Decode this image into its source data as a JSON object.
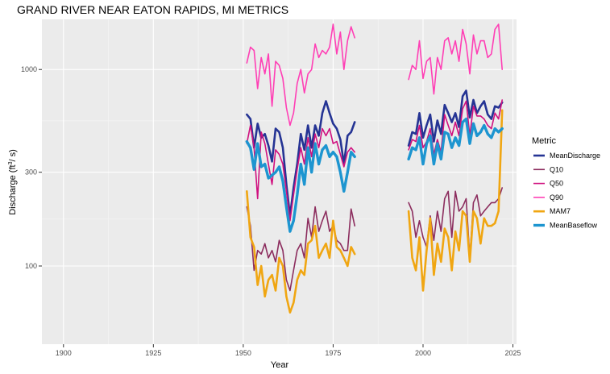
{
  "chart_data": {
    "type": "line",
    "title": "GRAND RIVER NEAR EATON RAPIDS, MI  METRICS",
    "xlabel": "Year",
    "ylabel": "Discharge (ft",
    "ylabel_sup": "3",
    "ylabel_tail": "/ s)",
    "x_scale": "linear",
    "y_scale": "log10",
    "xlim": [
      1894,
      2026
    ],
    "ylim": [
      40,
      1800
    ],
    "x_ticks": [
      1900,
      1925,
      1950,
      1975,
      2000,
      2025
    ],
    "x_tick_labels": [
      "1900",
      "1925",
      "1950",
      "1975",
      "2000",
      "2025"
    ],
    "y_ticks": [
      100,
      300,
      1000
    ],
    "y_tick_labels": [
      "100",
      "300",
      "1000"
    ],
    "grid": true,
    "legend": {
      "title": "Metric",
      "placement": "right",
      "entries": [
        "MeanDischarge",
        "Q10",
        "Q50",
        "Q90",
        "MAM7",
        "MeanBaseflow"
      ]
    },
    "x": [
      1950,
      1951,
      1952,
      1953,
      1954,
      1955,
      1956,
      1957,
      1958,
      1959,
      1960,
      1961,
      1962,
      1963,
      1964,
      1965,
      1966,
      1967,
      1968,
      1969,
      1970,
      1971,
      1972,
      1973,
      1974,
      1975,
      1976,
      1977,
      1978,
      1979,
      1980,
      1981,
      1982,
      1983,
      1984,
      1985,
      1986,
      1987,
      1988,
      1989,
      1990,
      1991,
      1992,
      1993,
      1994,
      1995,
      1996,
      1997,
      1998,
      1999,
      2000,
      2001,
      2002,
      2003,
      2004,
      2005,
      2006,
      2007,
      2008,
      2009,
      2010,
      2011,
      2012,
      2013,
      2014,
      2015,
      2016,
      2017,
      2018,
      2019,
      2020,
      2021,
      2022
    ],
    "series": [
      {
        "name": "MeanDischarge",
        "color": "#253494",
        "width": 2.6,
        "values": [
          null,
          590,
          560,
          400,
          530,
          450,
          470,
          410,
          340,
          500,
          480,
          400,
          260,
          180,
          250,
          330,
          470,
          390,
          520,
          400,
          520,
          460,
          600,
          690,
          600,
          530,
          500,
          440,
          330,
          460,
          480,
          540,
          null,
          null,
          null,
          null,
          null,
          null,
          null,
          null,
          null,
          null,
          null,
          null,
          null,
          null,
          410,
          480,
          470,
          600,
          450,
          520,
          590,
          430,
          550,
          470,
          660,
          600,
          540,
          600,
          510,
          730,
          780,
          570,
          700,
          600,
          650,
          690,
          590,
          560,
          650,
          640,
          680
        ]
      },
      {
        "name": "Q10",
        "color": "#8c2d5e",
        "width": 1.6,
        "values": [
          null,
          200,
          160,
          95,
          120,
          115,
          130,
          110,
          120,
          105,
          135,
          120,
          85,
          75,
          95,
          120,
          130,
          110,
          175,
          140,
          200,
          150,
          170,
          190,
          150,
          160,
          135,
          130,
          120,
          120,
          195,
          160,
          null,
          null,
          null,
          null,
          null,
          null,
          null,
          null,
          null,
          null,
          null,
          null,
          null,
          null,
          210,
          190,
          140,
          170,
          140,
          125,
          180,
          135,
          190,
          150,
          220,
          240,
          140,
          240,
          190,
          200,
          220,
          110,
          210,
          230,
          180,
          190,
          200,
          210,
          210,
          220,
          250
        ]
      },
      {
        "name": "Q50",
        "color": "#d0107f",
        "width": 1.6,
        "values": [
          null,
          420,
          520,
          400,
          220,
          480,
          420,
          330,
          260,
          390,
          370,
          330,
          240,
          170,
          230,
          310,
          400,
          330,
          450,
          360,
          470,
          400,
          500,
          460,
          500,
          420,
          430,
          370,
          320,
          380,
          400,
          380,
          null,
          null,
          null,
          null,
          null,
          null,
          null,
          null,
          null,
          null,
          null,
          null,
          null,
          null,
          390,
          440,
          430,
          520,
          400,
          430,
          500,
          370,
          440,
          380,
          590,
          520,
          460,
          540,
          460,
          630,
          690,
          460,
          650,
          580,
          580,
          560,
          520,
          500,
          600,
          560,
          700
        ]
      },
      {
        "name": "Q90",
        "color": "#ff3fb5",
        "width": 1.6,
        "values": [
          null,
          1080,
          1300,
          1250,
          800,
          1150,
          950,
          1200,
          650,
          1100,
          1050,
          900,
          640,
          520,
          600,
          850,
          1000,
          760,
          950,
          1000,
          1350,
          1150,
          1250,
          1200,
          1300,
          1700,
          1200,
          1550,
          1000,
          1400,
          1650,
          1450,
          null,
          null,
          null,
          null,
          null,
          null,
          null,
          null,
          null,
          null,
          null,
          null,
          null,
          null,
          890,
          1050,
          1000,
          1400,
          900,
          1100,
          1150,
          750,
          1150,
          1000,
          1400,
          1450,
          1200,
          1400,
          1100,
          1600,
          1350,
          950,
          1500,
          1200,
          1400,
          1400,
          1150,
          1200,
          1600,
          1700,
          1000
        ]
      },
      {
        "name": "MAM7",
        "color": "#f0a612",
        "width": 2.6,
        "values": [
          null,
          240,
          140,
          125,
          80,
          100,
          70,
          85,
          90,
          75,
          110,
          100,
          70,
          58,
          65,
          85,
          95,
          90,
          130,
          135,
          160,
          110,
          120,
          130,
          110,
          170,
          125,
          120,
          110,
          100,
          125,
          115,
          null,
          null,
          null,
          null,
          null,
          null,
          null,
          null,
          null,
          null,
          null,
          null,
          null,
          null,
          190,
          110,
          95,
          140,
          75,
          120,
          175,
          90,
          130,
          105,
          155,
          140,
          95,
          150,
          120,
          190,
          180,
          105,
          190,
          175,
          130,
          175,
          160,
          160,
          165,
          190,
          620
        ]
      },
      {
        "name": "MeanBaseflow",
        "color": "#1d95d0",
        "width": 3.4,
        "values": [
          null,
          430,
          400,
          310,
          420,
          320,
          330,
          280,
          290,
          300,
          320,
          270,
          200,
          150,
          170,
          230,
          330,
          260,
          400,
          300,
          420,
          330,
          390,
          410,
          360,
          380,
          360,
          300,
          240,
          300,
          380,
          360,
          null,
          null,
          null,
          null,
          null,
          null,
          null,
          null,
          null,
          null,
          null,
          null,
          null,
          null,
          350,
          400,
          390,
          450,
          330,
          420,
          460,
          330,
          420,
          350,
          480,
          470,
          400,
          450,
          410,
          540,
          560,
          420,
          530,
          460,
          480,
          520,
          470,
          450,
          500,
          480,
          500
        ]
      }
    ]
  }
}
